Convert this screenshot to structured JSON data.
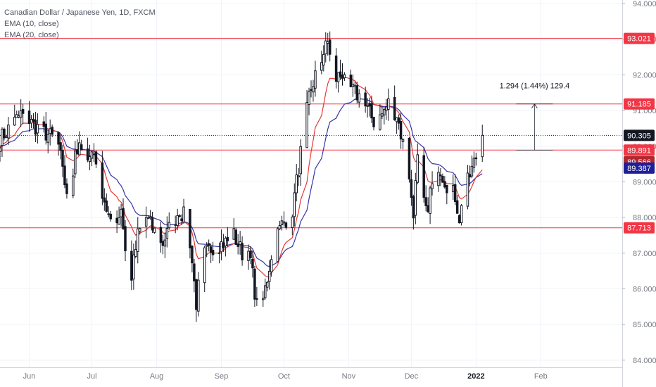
{
  "chart_data": {
    "type": "candlestick",
    "title": "Canadian Dollar / Japanese Yen, 1D, FXCM",
    "indicators": [
      "EMA (10, close)",
      "EMA (20, close)"
    ],
    "xlim_days": [
      0,
      298
    ],
    "ylim": [
      83.8,
      94.1
    ],
    "y_ticks": [
      "94.000",
      "93.000",
      "92.000",
      "91.000",
      "90.000",
      "89.000",
      "88.000",
      "87.000",
      "86.000",
      "85.000",
      "84.000"
    ],
    "y_tick_values": [
      94,
      93,
      92,
      91,
      90,
      89,
      88,
      87,
      86,
      85,
      84
    ],
    "x_ticks": [
      {
        "label": "Jun",
        "day": 14
      },
      {
        "label": "Jul",
        "day": 44
      },
      {
        "label": "Aug",
        "day": 75
      },
      {
        "label": "Sep",
        "day": 106
      },
      {
        "label": "Oct",
        "day": 136
      },
      {
        "label": "Nov",
        "day": 167
      },
      {
        "label": "Dec",
        "day": 197
      },
      {
        "label": "2022",
        "day": 228
      },
      {
        "label": "Feb",
        "day": 259
      }
    ],
    "horizontal_levels": [
      {
        "value": 93.021,
        "label": "93.021"
      },
      {
        "value": 91.185,
        "label": "91.185"
      },
      {
        "value": 89.891,
        "label": "89.891"
      },
      {
        "value": 87.713,
        "label": "87.713"
      }
    ],
    "price_badges": [
      {
        "value": 90.305,
        "label": "90.305",
        "color": "#131722"
      },
      {
        "value": 89.566,
        "label": "89.566",
        "color": "#b2282e"
      },
      {
        "value": 89.387,
        "label": "89.387",
        "color": "#1f1f99"
      }
    ],
    "last_price": 90.305,
    "measure": {
      "label": "1.294 (1.44%) 129.4",
      "day": 256,
      "from": 89.891,
      "to": 91.185
    },
    "anchors": [
      [
        0,
        90.2
      ],
      [
        10,
        90.9
      ],
      [
        16,
        90.6
      ],
      [
        26,
        90.2
      ],
      [
        30,
        89.5
      ],
      [
        33,
        88.0
      ],
      [
        36,
        89.9
      ],
      [
        45,
        89.8
      ],
      [
        50,
        88.5
      ],
      [
        54,
        87.5
      ],
      [
        58,
        88.3
      ],
      [
        62,
        86.0
      ],
      [
        66,
        87.5
      ],
      [
        70,
        88.0
      ],
      [
        74,
        87.6
      ],
      [
        78,
        87.3
      ],
      [
        82,
        87.8
      ],
      [
        86,
        88.2
      ],
      [
        90,
        87.9
      ],
      [
        94,
        85.6
      ],
      [
        97,
        86.9
      ],
      [
        102,
        87.2
      ],
      [
        108,
        87.3
      ],
      [
        112,
        87.5
      ],
      [
        116,
        87.0
      ],
      [
        120,
        86.8
      ],
      [
        124,
        85.1
      ],
      [
        128,
        86.3
      ],
      [
        131,
        87.3
      ],
      [
        135,
        87.8
      ],
      [
        140,
        88.2
      ],
      [
        144,
        89.8
      ],
      [
        148,
        91.4
      ],
      [
        152,
        92.2
      ],
      [
        157,
        92.9
      ],
      [
        161,
        91.9
      ],
      [
        165,
        92.1
      ],
      [
        168,
        91.6
      ],
      [
        172,
        91.4
      ],
      [
        176,
        91.0
      ],
      [
        180,
        90.6
      ],
      [
        186,
        91.2
      ],
      [
        190,
        90.9
      ],
      [
        194,
        89.8
      ],
      [
        198,
        88.2
      ],
      [
        200,
        89.6
      ],
      [
        204,
        88.1
      ],
      [
        206,
        88.7
      ],
      [
        210,
        89.5
      ],
      [
        214,
        88.9
      ],
      [
        218,
        88.6
      ],
      [
        220,
        88.0
      ],
      [
        224,
        89.0
      ],
      [
        228,
        89.7
      ],
      [
        231,
        90.3
      ]
    ],
    "ema10_color": "#e53935",
    "ema20_color": "#3535a8",
    "up_color": "#ffffff",
    "down_color": "#131722",
    "level_color": "#f23645"
  }
}
